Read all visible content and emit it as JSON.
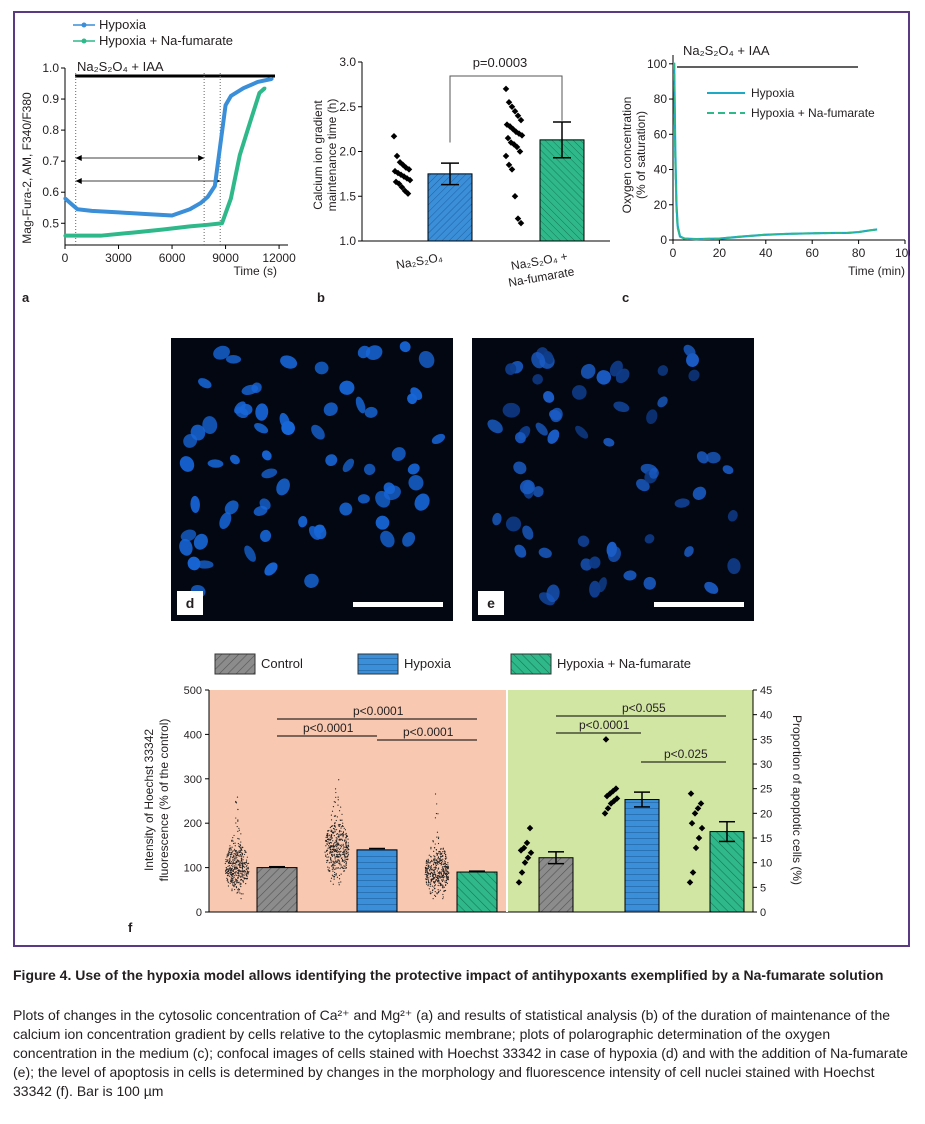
{
  "panels": {
    "a": {
      "label": "a",
      "legend": [
        "Hypoxia",
        "Hypoxia + Na-fumarate"
      ],
      "bar_label": "Na₂S₂O₄ + IAA",
      "ylabel": "Mag-Fura-2, AM, F340/F380",
      "xlabel": "Time (s)",
      "yticks": [
        "0.5",
        "0.6",
        "0.7",
        "0.8",
        "0.9",
        "1.0"
      ],
      "xticks": [
        "0",
        "3000",
        "6000",
        "9000",
        "12000"
      ]
    },
    "b": {
      "label": "b",
      "ylabel": [
        "Calcium ion gradient",
        "maintenance time (h)"
      ],
      "pvalue": "p=0.0003",
      "yticks": [
        "1.0",
        "1.5",
        "2.0",
        "2.5",
        "3.0"
      ],
      "xcat1": "Na₂S₂O₄",
      "xcat2a": "Na₂S₂O₄ +",
      "xcat2b": "Na-fumarate"
    },
    "c": {
      "label": "c",
      "bar_label": "Na₂S₂O₄ + IAA",
      "legend": [
        "Hypoxia",
        "Hypoxia + Na-fumarate"
      ],
      "ylabel": [
        "Oxygen concentration",
        "(% of saturation)"
      ],
      "xlabel": "Time (min)",
      "yticks": [
        "0",
        "20",
        "40",
        "60",
        "80",
        "100"
      ],
      "xticks": [
        "0",
        "20",
        "40",
        "60",
        "80",
        "100"
      ]
    },
    "d": {
      "label": "d"
    },
    "e": {
      "label": "e"
    },
    "f": {
      "label": "f",
      "legend": [
        "Control",
        "Hypoxia",
        "Hypoxia + Na-fumarate"
      ],
      "ylabel_left": [
        "Intensity of Hoechst 33342",
        "fluorescence (% of the control)"
      ],
      "ylabel_right": "Proportion of apoptotic cells (%)",
      "yticks_left": [
        "0",
        "100",
        "200",
        "300",
        "400",
        "500"
      ],
      "yticks_right": [
        "0",
        "5",
        "10",
        "15",
        "20",
        "25",
        "30",
        "35",
        "40",
        "45"
      ],
      "pvals_left": [
        "p<0.0001",
        "p<0.0001",
        "p<0.0001"
      ],
      "pvals_right": [
        "p<0.055",
        "p<0.0001",
        "p<0.025"
      ]
    }
  },
  "colors": {
    "hypoxia": "#3a8fd8",
    "fumarate": "#2fb98a",
    "control": "#8c8c8c",
    "left_bg": "#f8c8b0",
    "right_bg": "#d2e6a4",
    "frame": "#5b3a83",
    "nuclei": "#1a63d6"
  },
  "chart_data": [
    {
      "type": "line",
      "title": "",
      "xlabel": "Time (s)",
      "ylabel": "Mag-Fura-2, AM, F340/F380",
      "xlim": [
        0,
        12500
      ],
      "ylim": [
        0.43,
        1.0
      ],
      "series": [
        {
          "name": "Hypoxia",
          "x": [
            0,
            300,
            700,
            1500,
            3000,
            4500,
            6000,
            7000,
            7600,
            8000,
            8400,
            8700,
            9000,
            9300,
            10000,
            10800,
            11600
          ],
          "y": [
            0.58,
            0.565,
            0.545,
            0.54,
            0.535,
            0.53,
            0.525,
            0.545,
            0.565,
            0.585,
            0.62,
            0.75,
            0.88,
            0.91,
            0.935,
            0.955,
            0.965
          ]
        },
        {
          "name": "Hypoxia + Na-fumarate",
          "x": [
            0,
            2000,
            3800,
            5500,
            7000,
            8000,
            8800,
            9300,
            9800,
            10400,
            10900,
            11200
          ],
          "y": [
            0.46,
            0.46,
            0.47,
            0.48,
            0.49,
            0.495,
            0.5,
            0.58,
            0.72,
            0.83,
            0.92,
            0.935
          ]
        }
      ]
    },
    {
      "type": "bar",
      "title": "",
      "xlabel": "",
      "ylabel": "Calcium ion gradient maintenance time (h)",
      "ylim": [
        1.0,
        3.0
      ],
      "categories": [
        "Na₂S₂O₄",
        "Na₂S₂O₄ + Na-fumarate"
      ],
      "values": [
        1.75,
        2.13
      ],
      "errors": [
        0.12,
        0.2
      ],
      "points": [
        [
          2.17,
          1.95,
          1.88,
          1.85,
          1.82,
          1.8,
          1.78,
          1.76,
          1.74,
          1.72,
          1.7,
          1.68,
          1.66,
          1.64,
          1.6,
          1.56,
          1.53
        ],
        [
          2.7,
          2.55,
          2.5,
          2.45,
          2.4,
          2.35,
          2.3,
          2.28,
          2.25,
          2.22,
          2.2,
          2.18,
          2.15,
          2.1,
          2.08,
          2.05,
          2.0,
          1.95,
          1.85,
          1.8,
          1.5,
          1.25,
          1.2
        ]
      ]
    },
    {
      "type": "line",
      "title": "",
      "xlabel": "Time (min)",
      "ylabel": "Oxygen concentration (% of saturation)",
      "xlim": [
        0,
        100
      ],
      "ylim": [
        0,
        105
      ],
      "series": [
        {
          "name": "Hypoxia",
          "x": [
            0,
            0.5,
            1,
            1.5,
            2,
            3,
            5,
            10,
            20,
            30,
            40,
            50,
            60,
            70,
            75,
            80,
            85,
            88
          ],
          "y": [
            100,
            100,
            50,
            20,
            8,
            2,
            0.8,
            0.5,
            0.8,
            2,
            3,
            3.5,
            3.8,
            4,
            4,
            4.5,
            5.5,
            6
          ]
        },
        {
          "name": "Hypoxia + Na-fumarate",
          "x": [
            0,
            0.5,
            1,
            1.5,
            2,
            3,
            5,
            10,
            20,
            30,
            40,
            50,
            60,
            70,
            75,
            80,
            85,
            88
          ],
          "y": [
            100,
            100,
            45,
            18,
            7,
            2,
            0.8,
            0.5,
            0.8,
            2,
            3,
            3.5,
            3.8,
            4,
            4,
            4.5,
            5.5,
            6
          ]
        }
      ]
    },
    {
      "type": "bar",
      "title": "",
      "ylabel": "Intensity of Hoechst 33342 fluorescence (% of the control)",
      "ylim": [
        0,
        500
      ],
      "categories": [
        "Control",
        "Hypoxia",
        "Hypoxia + Na-fumarate"
      ],
      "values": [
        100,
        140,
        90
      ],
      "errors": [
        2,
        3,
        2
      ]
    },
    {
      "type": "bar",
      "title": "",
      "ylabel": "Proportion of apoptotic cells (%)",
      "ylim": [
        0,
        45
      ],
      "categories": [
        "Control",
        "Hypoxia",
        "Hypoxia + Na-fumarate"
      ],
      "values": [
        11,
        22.8,
        16.3
      ],
      "errors": [
        1.2,
        1.5,
        2
      ],
      "points": [
        [
          6,
          8,
          10,
          11,
          12,
          12.5,
          13,
          14,
          17
        ],
        [
          20,
          21,
          22,
          22.5,
          23,
          23.5,
          24,
          24.5,
          25,
          35
        ],
        [
          6,
          8,
          13,
          15,
          17,
          18,
          20,
          21,
          22,
          24
        ]
      ]
    }
  ],
  "caption": {
    "title": "Figure 4. Use of the hypoxia model allows identifying the protective impact of antihypoxants exemplified by a Na-fumarate solution",
    "body": "Plots of changes in the cytosolic concentration of Ca²⁺ and Mg²⁺ (a) and results of statistical analysis (b) of the duration of maintenance of the calcium ion concentration gradient by cells relative to the cytoplasmic membrane; plots of polarographic determination of the oxygen concentration in the medium (c); confocal images of cells stained with Hoechst 33342 in case of hypoxia (d) and with the addition of Na-fumarate (e); the level of apoptosis in cells is determined by changes in the morphology and fluorescence intensity of cell nuclei stained with Hoechst 33342 (f). Bar is 100 µm"
  }
}
